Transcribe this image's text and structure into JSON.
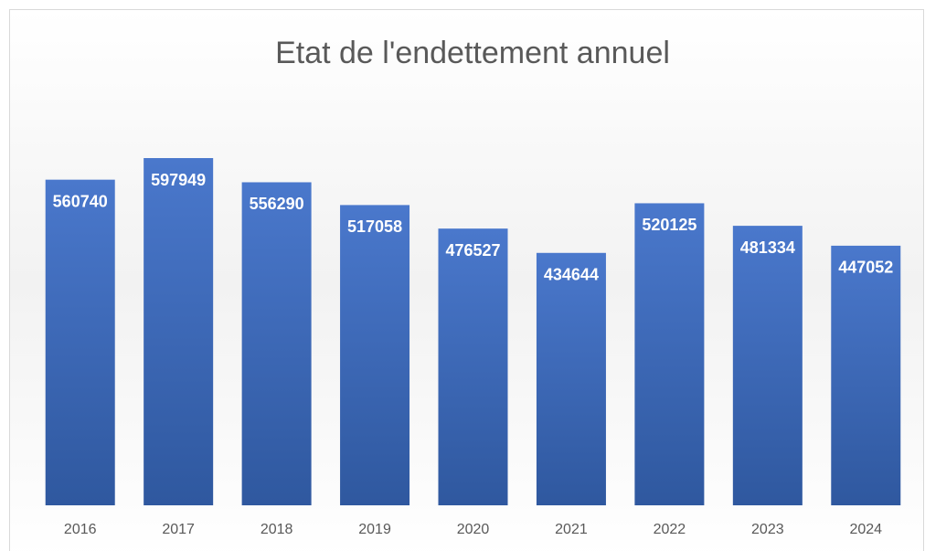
{
  "chart_data": {
    "type": "bar",
    "title": "Etat de l'endettement annuel",
    "categories": [
      "2016",
      "2017",
      "2018",
      "2019",
      "2020",
      "2021",
      "2022",
      "2023",
      "2024"
    ],
    "values": [
      560740,
      597949,
      556290,
      517058,
      476527,
      434644,
      520125,
      481334,
      447052
    ],
    "color": "#4472c4"
  }
}
